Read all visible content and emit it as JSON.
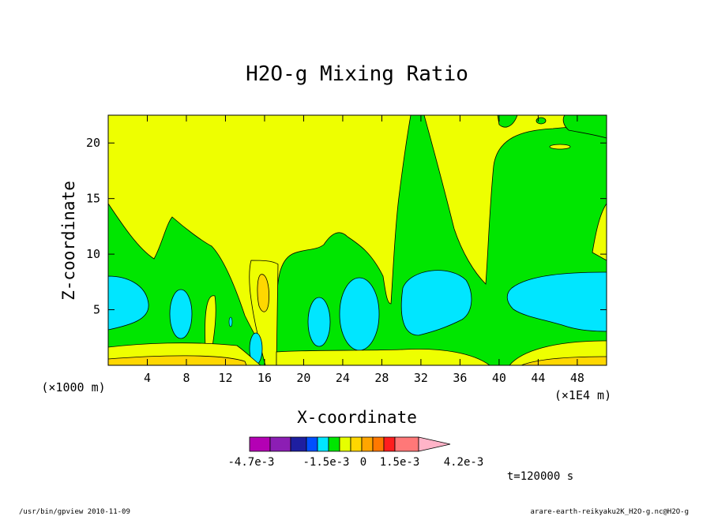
{
  "chart_data": {
    "type": "heatmap",
    "title": "H2O-g Mixing Ratio",
    "xlabel": "X-coordinate",
    "ylabel": "Z-coordinate",
    "x_unit_note": "(×1E4 m)",
    "y_unit_note": "(×1000 m)",
    "x_ticks": [
      "4",
      "8",
      "12",
      "16",
      "20",
      "24",
      "28",
      "32",
      "36",
      "40",
      "44",
      "48"
    ],
    "y_ticks": [
      "5",
      "10",
      "15",
      "20"
    ],
    "xlim": [
      0,
      51
    ],
    "ylim": [
      0,
      22.5
    ],
    "colorbar": {
      "labels": [
        "-4.7e-3",
        "-1.5e-3",
        "0",
        "1.5e-3",
        "4.2e-3"
      ],
      "colors": [
        "#b400b4",
        "#8c1eb4",
        "#1e1ea0",
        "#0050ff",
        "#00e6ff",
        "#00e600",
        "#e6ff00",
        "#ffd700",
        "#ffa500",
        "#ff7800",
        "#ff1e1e",
        "#ff7878",
        "#ffb4c8"
      ],
      "extend": "max"
    },
    "fill_colors": {
      "background": "#eeff00",
      "green": "#00e600",
      "cyan": "#00e6ff",
      "gold": "#ffd700",
      "orange": "#ffa500"
    },
    "time_label": "t=120000 s"
  },
  "footer": {
    "left": "/usr/bin/gpview  2010-11-09",
    "right": "arare-earth-reikyaku2K_H2O-g.nc@H2O-g"
  }
}
